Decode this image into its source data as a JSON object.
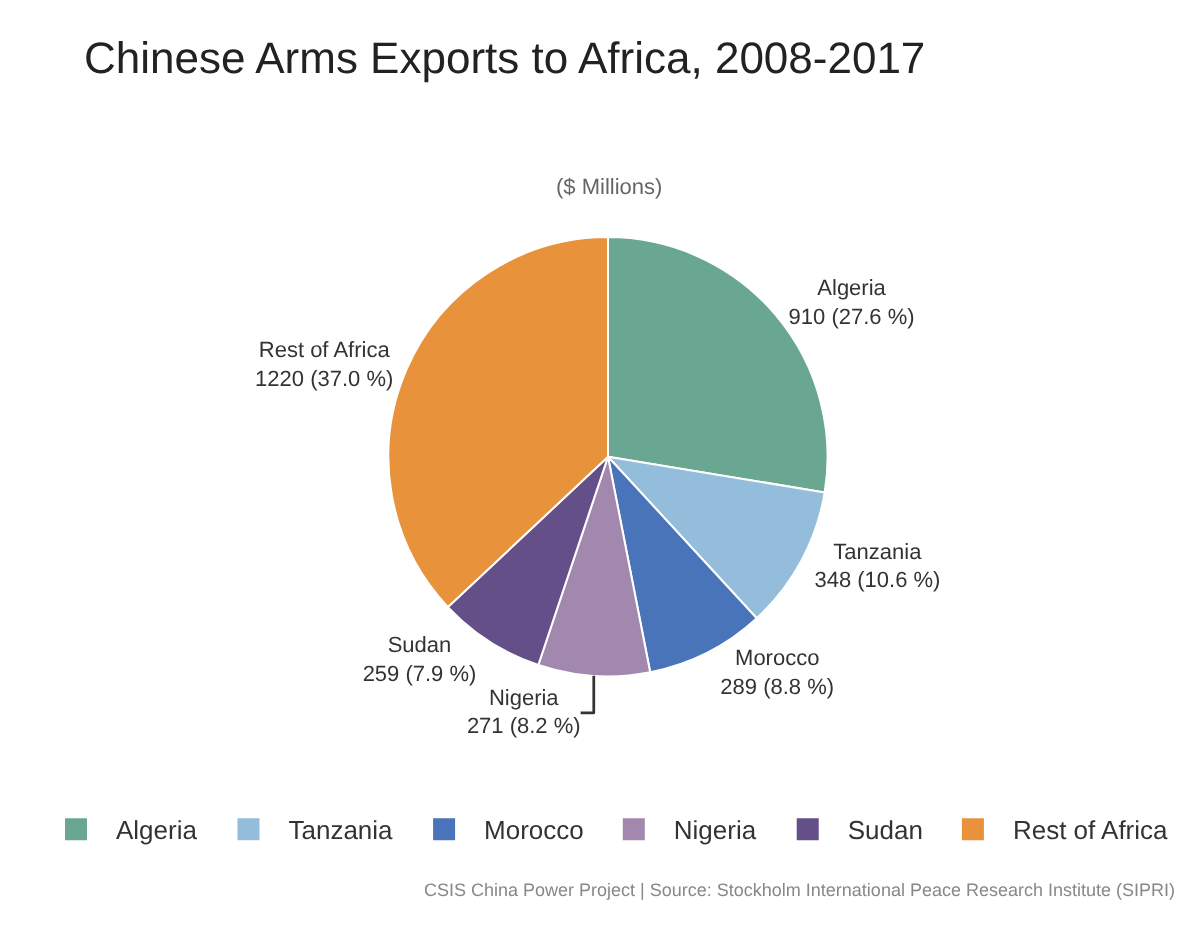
{
  "chart_data": {
    "type": "pie",
    "title": "Chinese Arms Exports to Africa, 2008-2017",
    "subtitle": "($ Millions)",
    "categories": [
      "Algeria",
      "Tanzania",
      "Morocco",
      "Nigeria",
      "Sudan",
      "Rest of Africa"
    ],
    "values": [
      910,
      348,
      289,
      271,
      259,
      1220
    ],
    "value_labels": [
      "910 (27.6 %)",
      "348 (10.6 %)",
      "289 (8.8 %)",
      "271 (8.2 %)",
      "259 (7.9 %)",
      "1220 (37.0 %)"
    ],
    "colors": [
      "#6aa792",
      "#93bddb",
      "#4a74b9",
      "#a288ae",
      "#654f88",
      "#e8923b"
    ],
    "legend": "bottom",
    "annotations": [
      "CSIS China Power Project | Source: Stockholm International Peace Research Institute (SIPRI)"
    ]
  }
}
